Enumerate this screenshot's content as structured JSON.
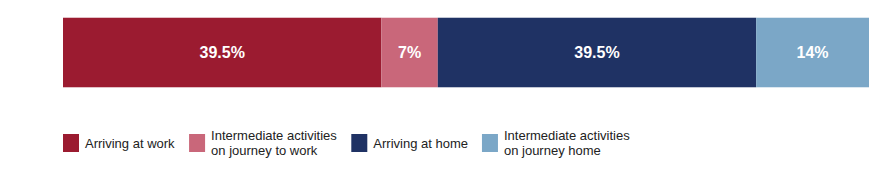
{
  "chart_data": {
    "type": "bar",
    "orientation": "horizontal",
    "stacked": true,
    "categories": [
      null
    ],
    "series": [
      {
        "name": "Arriving at work",
        "color": "#9B1B30",
        "values": [
          39.5
        ],
        "value_labels": [
          "39.5%"
        ]
      },
      {
        "name": "Intermediate activities\non journey to work",
        "color": "#C9677A",
        "values": [
          7.0
        ],
        "value_labels": [
          "7%"
        ]
      },
      {
        "name": "Arriving at home",
        "color": "#1F3264",
        "values": [
          39.5
        ],
        "value_labels": [
          "39.5%"
        ]
      },
      {
        "name": "Intermediate activities\non journey home",
        "color": "#7BA7C7",
        "values": [
          14.0
        ],
        "value_labels": [
          "14%"
        ]
      }
    ],
    "xlim": [
      0,
      100
    ],
    "data_labels": true,
    "tick_labels": false,
    "legend": "bottom"
  }
}
